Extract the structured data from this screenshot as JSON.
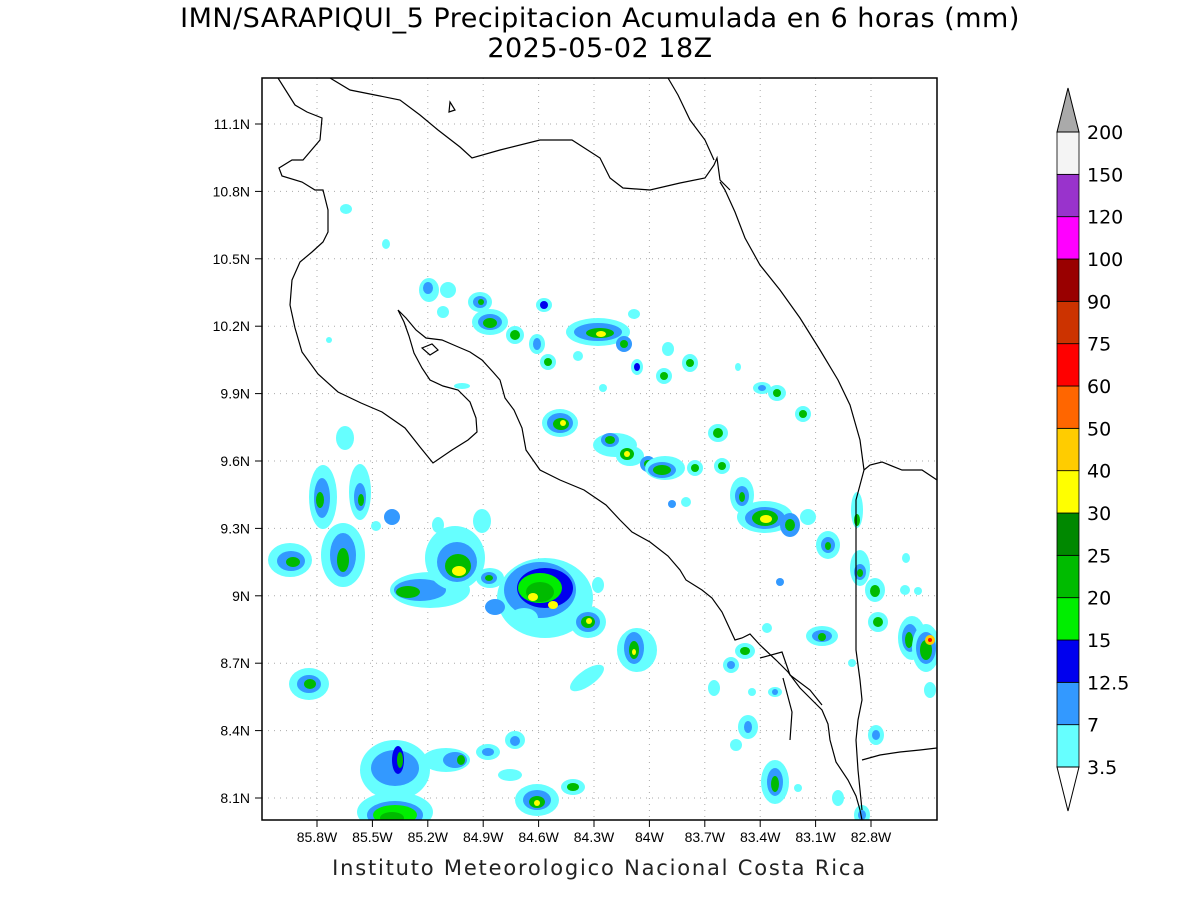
{
  "title_line1": "IMN/SARAPIQUI_5 Precipitacion Acumulada en 6 horas (mm)",
  "title_line2": "2025-05-02 18Z",
  "footer": "Instituto Meteorologico Nacional Costa Rica",
  "map": {
    "lon_range": [
      -86.1,
      -83.09
    ],
    "lat_range": [
      8.0,
      11.3
    ],
    "x_ticks": [
      "85.8W",
      "85.5W",
      "85.2W",
      "84.9W",
      "84.6W",
      "84.3W",
      "84W",
      "83.7W",
      "83.4W",
      "83.1W",
      "82.8W"
    ],
    "y_ticks": [
      "11.1N",
      "10.8N",
      "10.5N",
      "10.2N",
      "9.9N",
      "9.6N",
      "9.3N",
      "9N",
      "8.7N",
      "8.4N",
      "8.1N"
    ]
  },
  "colorbar": {
    "labels": [
      "3.5",
      "7",
      "12.5",
      "15",
      "20",
      "25",
      "30",
      "40",
      "50",
      "60",
      "75",
      "90",
      "100",
      "120",
      "150",
      "200"
    ],
    "colors": [
      "#66ffff",
      "#3399ff",
      "#0000ee",
      "#00ee00",
      "#00bb00",
      "#008800",
      "#ffff00",
      "#ffcc00",
      "#ff6600",
      "#ff0000",
      "#cc3300",
      "#990000",
      "#ff00ff",
      "#9933cc",
      "#f4f4f4"
    ],
    "under_color": "#ffffff",
    "over_color": "#aaaaaa"
  }
}
